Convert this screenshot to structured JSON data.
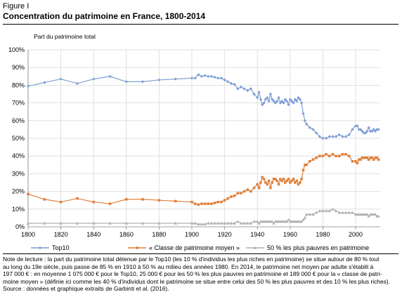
{
  "figure_label": "Figure I",
  "figure_title": "Concentration du patrimoine en France, 1800-2014",
  "note": {
    "line1": "Note de lecture : la part du patrimoine total détenue par le Top10 (les 10 % d'individus les plus riches en patrimoine) se situe autour de 80 % tout",
    "line2": "au long du 19e siècle, puis passe de 85 % en 1910 à 50 % au milieu des années 1980. En 2014, le patrimoine net moyen par adulte s'établit à",
    "line3": "197 000 € : en moyenne 1 075 000 € pour le Top10, 25 000 € pour les 50 % les plus pauvres en patrimoine et 189 000 € pour la « classe de patri-",
    "line4": "moine moyen » (définie ici comme les 40 % d'individus dont le patrimoine se situe entre celui des 50 % les plus pauvres et des 10 % les plus riches).",
    "line5": "Source : données et graphique extraits de Garbinti et al. (2016)."
  },
  "colors": {
    "top10": "#7f9fd4",
    "middle": "#e0803a",
    "bottom50": "#b0b0b0",
    "grid": "#d9d9d9",
    "axis": "#808080"
  },
  "chart_data": {
    "type": "line",
    "title": "",
    "ylabel": "Part du patrimoine total",
    "xlabel": "",
    "xlim": [
      1800,
      2015
    ],
    "ylim": [
      0,
      100
    ],
    "x_ticks": [
      1800,
      1820,
      1840,
      1860,
      1880,
      1900,
      1920,
      1940,
      1960,
      1980,
      2000
    ],
    "y_ticks": [
      "0%",
      "10%",
      "20%",
      "30%",
      "40%",
      "50%",
      "60%",
      "70%",
      "80%",
      "90%",
      "100%"
    ],
    "legend_placement": "bottom",
    "grid": true,
    "series": [
      {
        "name": "Top10",
        "color_key": "top10",
        "marker": "diamond",
        "x": [
          1800,
          1810,
          1820,
          1830,
          1840,
          1850,
          1860,
          1870,
          1880,
          1890,
          1900,
          1902,
          1904,
          1906,
          1908,
          1910,
          1912,
          1914,
          1916,
          1918,
          1920,
          1922,
          1924,
          1926,
          1928,
          1930,
          1932,
          1934,
          1936,
          1938,
          1940,
          1941,
          1942,
          1943,
          1944,
          1945,
          1946,
          1947,
          1948,
          1949,
          1950,
          1951,
          1952,
          1953,
          1954,
          1955,
          1956,
          1957,
          1958,
          1959,
          1960,
          1961,
          1962,
          1963,
          1964,
          1965,
          1966,
          1967,
          1968,
          1969,
          1970,
          1972,
          1974,
          1976,
          1978,
          1980,
          1982,
          1984,
          1986,
          1988,
          1990,
          1992,
          1994,
          1996,
          1998,
          2000,
          2001,
          2002,
          2003,
          2004,
          2005,
          2006,
          2007,
          2008,
          2009,
          2010,
          2011,
          2012,
          2013,
          2014
        ],
        "y": [
          79.5,
          81.5,
          83.5,
          81,
          83.5,
          85,
          82,
          82,
          83,
          83.5,
          84,
          84,
          86,
          85,
          85.5,
          85,
          85,
          84.5,
          84,
          84,
          83,
          82,
          81,
          80.5,
          78,
          79,
          78,
          77,
          78,
          75,
          73,
          76,
          72,
          69,
          70,
          72,
          73,
          71,
          75,
          72,
          71,
          70,
          71,
          73,
          70,
          71,
          70,
          72,
          71,
          69,
          72,
          71,
          70,
          72,
          71,
          73,
          72,
          70,
          64,
          60,
          58,
          56,
          55,
          53,
          51,
          50,
          50,
          51,
          51,
          51,
          52,
          51,
          51,
          52,
          55,
          57,
          57,
          55,
          55,
          54,
          53,
          53,
          54,
          56,
          54,
          54,
          55,
          54,
          55,
          55
        ]
      },
      {
        "name": "« Classe de patrimoine moyen »",
        "color_key": "middle",
        "marker": "square",
        "x": [
          1800,
          1810,
          1820,
          1830,
          1840,
          1850,
          1860,
          1870,
          1880,
          1890,
          1900,
          1902,
          1904,
          1906,
          1908,
          1910,
          1912,
          1914,
          1916,
          1918,
          1920,
          1922,
          1924,
          1926,
          1928,
          1930,
          1932,
          1934,
          1936,
          1938,
          1940,
          1941,
          1942,
          1943,
          1944,
          1945,
          1946,
          1947,
          1948,
          1949,
          1950,
          1951,
          1952,
          1953,
          1954,
          1955,
          1956,
          1957,
          1958,
          1959,
          1960,
          1961,
          1962,
          1963,
          1964,
          1965,
          1966,
          1967,
          1968,
          1969,
          1970,
          1972,
          1974,
          1976,
          1978,
          1980,
          1982,
          1984,
          1986,
          1988,
          1990,
          1992,
          1994,
          1996,
          1998,
          2000,
          2001,
          2002,
          2003,
          2004,
          2005,
          2006,
          2007,
          2008,
          2009,
          2010,
          2011,
          2012,
          2013,
          2014
        ],
        "y": [
          18.5,
          15.5,
          14,
          16,
          14,
          13,
          15.5,
          15.5,
          15,
          14.5,
          14,
          13,
          12.5,
          13,
          13,
          13,
          13,
          13.5,
          14,
          14,
          15,
          16,
          17,
          17.5,
          19,
          19,
          20,
          21,
          20,
          22,
          24,
          22,
          25,
          28,
          27,
          25,
          24,
          26,
          22,
          25,
          27,
          27,
          26,
          24,
          27,
          26,
          27,
          25,
          26,
          27,
          25,
          26,
          27,
          25,
          26,
          24,
          25,
          27,
          32,
          35,
          35,
          37,
          38,
          39,
          40,
          40,
          41,
          40,
          41,
          40,
          40,
          41,
          41,
          40,
          37,
          37,
          36,
          38,
          38,
          39,
          39,
          39,
          39,
          38,
          39,
          39,
          38,
          39,
          39,
          38
        ]
      },
      {
        "name": "50 % les plus pauvres en patrimoine",
        "color_key": "bottom50",
        "marker": "triangle",
        "x": [
          1800,
          1810,
          1820,
          1830,
          1840,
          1850,
          1860,
          1870,
          1880,
          1890,
          1900,
          1902,
          1904,
          1906,
          1908,
          1910,
          1912,
          1914,
          1916,
          1918,
          1920,
          1922,
          1924,
          1926,
          1928,
          1930,
          1932,
          1934,
          1936,
          1938,
          1940,
          1941,
          1942,
          1943,
          1944,
          1945,
          1946,
          1947,
          1948,
          1949,
          1950,
          1951,
          1952,
          1953,
          1954,
          1955,
          1956,
          1957,
          1958,
          1959,
          1960,
          1961,
          1962,
          1963,
          1964,
          1965,
          1966,
          1967,
          1968,
          1969,
          1970,
          1972,
          1974,
          1976,
          1978,
          1980,
          1982,
          1984,
          1986,
          1988,
          1990,
          1992,
          1994,
          1996,
          1998,
          2000,
          2001,
          2002,
          2003,
          2004,
          2005,
          2006,
          2007,
          2008,
          2009,
          2010,
          2011,
          2012,
          2013,
          2014
        ],
        "y": [
          2,
          2,
          2,
          2,
          2,
          2,
          2,
          2,
          2,
          2,
          2,
          2,
          1.5,
          1.5,
          1.5,
          2,
          2,
          2,
          2,
          2,
          2,
          2,
          2,
          2,
          3,
          2,
          2,
          2,
          2,
          3,
          3,
          2,
          3,
          3,
          3,
          3,
          3,
          3,
          3,
          3,
          2,
          3,
          3,
          3,
          3,
          3,
          3,
          3,
          3,
          4,
          3,
          3,
          3,
          3,
          3,
          3,
          3,
          3,
          4,
          5,
          7,
          7,
          7,
          8,
          9,
          9,
          9,
          9,
          10,
          9,
          8,
          8,
          8,
          8,
          8,
          7,
          7,
          7,
          7,
          7,
          7,
          7,
          7,
          6,
          7,
          7,
          7,
          7,
          6,
          6
        ]
      }
    ]
  }
}
